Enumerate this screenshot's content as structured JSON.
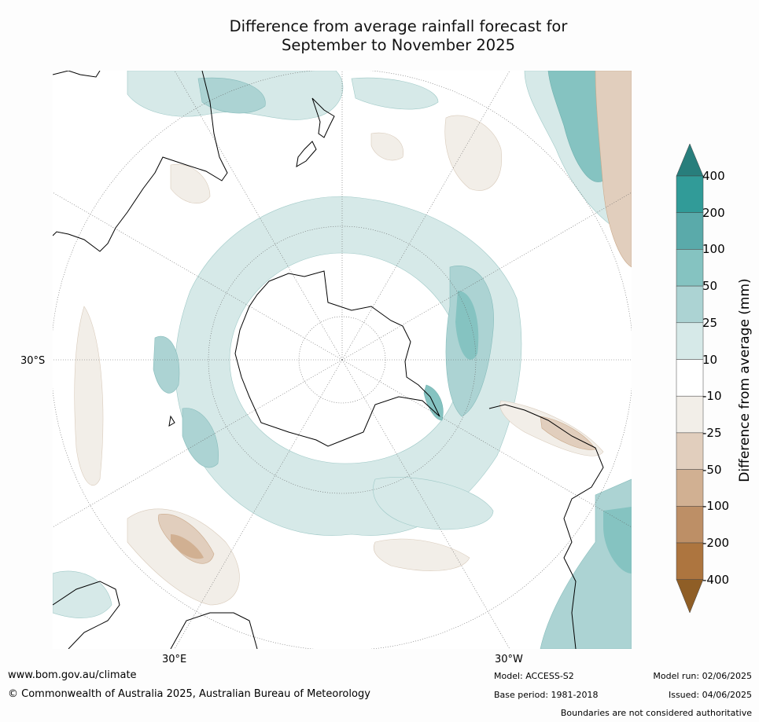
{
  "title": {
    "line1": "Difference from average rainfall forecast for",
    "line2": "September to November 2025"
  },
  "map": {
    "projection": "south-polar-stereographic",
    "labels": {
      "lat_30s": "30°S",
      "lon_30e": "30°E",
      "lon_30w": "30°W"
    }
  },
  "colorbar": {
    "title": "Difference from average (mm)",
    "tick_labels": [
      "400",
      "200",
      "100",
      "50",
      "25",
      "10",
      "-10",
      "-25",
      "-50",
      "-100",
      "-200",
      "-400"
    ],
    "colors": {
      "extend_high": "#287e7c",
      "gt_200": "#319b98",
      "100_200": "#5aaaaa",
      "50_100": "#85c3c1",
      "25_50": "#acd3d3",
      "10_25": "#d6e9e8",
      "neutral": "#ffffff",
      "m10_m25": "#f2eee8",
      "m25_m50": "#e1cebd",
      "m50_m100": "#d1b092",
      "m100_m200": "#bd8f66",
      "lt_m200": "#ad753f",
      "extend_low": "#8f5e26"
    }
  },
  "footer": {
    "url": "www.bom.gov.au/climate",
    "copyright": "© Commonwealth of Australia 2025, Australian Bureau of Meteorology",
    "model": "Model: ACCESS-S2",
    "base_period": "Base period: 1981-2018",
    "model_run": "Model run: 02/06/2025",
    "issued": "Issued: 04/06/2025",
    "disclaimer": "Boundaries are not considered authoritative"
  }
}
